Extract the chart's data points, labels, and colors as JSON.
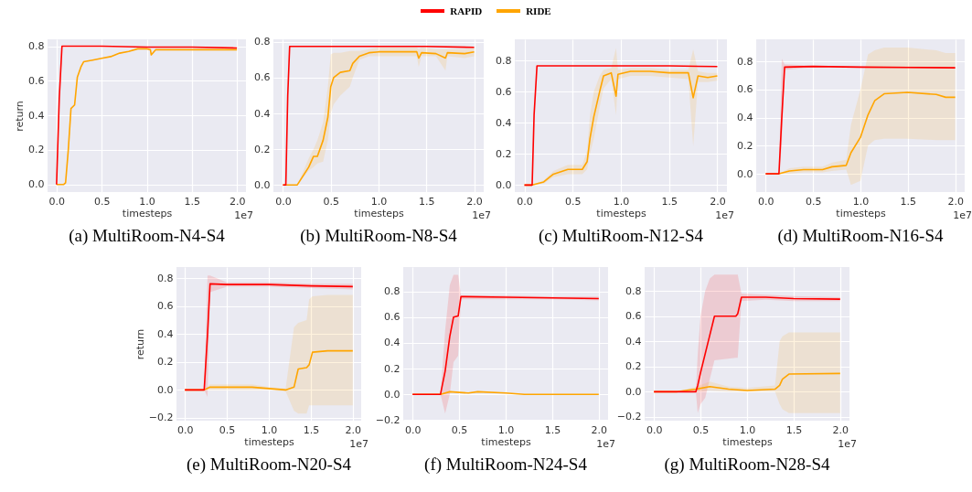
{
  "chart_data": [
    {
      "type": "line",
      "title": "(a) MultiRoom-N4-S4",
      "xlabel": "timesteps",
      "ylabel": "return",
      "annotations": [
        "1e7"
      ],
      "legend": "top",
      "grid": true,
      "xlim": [
        -0.1,
        2.1
      ],
      "ylim": [
        -0.044,
        0.84
      ],
      "xticks": [
        {
          "value": 0,
          "label": "0.0"
        },
        {
          "value": 0.5,
          "label": "0.5"
        },
        {
          "value": 1,
          "label": "1.0"
        },
        {
          "value": 1.5,
          "label": "1.5"
        },
        {
          "value": 2,
          "label": "2.0"
        }
      ],
      "yticks": [
        {
          "value": 0,
          "label": "0.0"
        },
        {
          "value": 0.2,
          "label": "0.2"
        },
        {
          "value": 0.4,
          "label": "0.4"
        },
        {
          "value": 0.6,
          "label": "0.6"
        },
        {
          "value": 0.8,
          "label": "0.8"
        }
      ],
      "series": [
        {
          "name": "RAPID",
          "color": "#ff0000",
          "x": [
            0,
            0.03,
            0.06,
            0.1,
            0.5,
            1,
            1.5,
            2
          ],
          "values": [
            0,
            0.5,
            0.8,
            0.8,
            0.8,
            0.795,
            0.795,
            0.79
          ]
        },
        {
          "name": "RIDE",
          "color": "#ffa500",
          "x": [
            0,
            0.08,
            0.1,
            0.13,
            0.16,
            0.2,
            0.23,
            0.27,
            0.3,
            0.4,
            0.5,
            0.6,
            0.7,
            0.8,
            0.9,
            1.0,
            1.04,
            1.05,
            1.1,
            1.5,
            2.0
          ],
          "values": [
            0,
            0,
            0.01,
            0.2,
            0.44,
            0.46,
            0.62,
            0.68,
            0.71,
            0.72,
            0.73,
            0.74,
            0.76,
            0.77,
            0.785,
            0.785,
            0.78,
            0.75,
            0.78,
            0.78,
            0.78
          ]
        }
      ]
    },
    {
      "type": "line",
      "title": "(b) MultiRoom-N8-S4",
      "xlabel": "timesteps",
      "annotations": [
        "1e7"
      ],
      "grid": true,
      "xlim": [
        -0.1,
        2.1
      ],
      "ylim": [
        -0.04,
        0.815
      ],
      "xticks": [
        {
          "value": 0,
          "label": "0.0"
        },
        {
          "value": 0.5,
          "label": "0.5"
        },
        {
          "value": 1,
          "label": "1.0"
        },
        {
          "value": 1.5,
          "label": "1.5"
        },
        {
          "value": 2,
          "label": "2.0"
        }
      ],
      "yticks": [
        {
          "value": 0,
          "label": "0.0"
        },
        {
          "value": 0.2,
          "label": "0.2"
        },
        {
          "value": 0.4,
          "label": "0.4"
        },
        {
          "value": 0.6,
          "label": "0.6"
        },
        {
          "value": 0.8,
          "label": "0.8"
        }
      ],
      "series": [
        {
          "color": "#ff0000",
          "x": [
            0,
            0.03,
            0.05,
            0.07,
            0.5,
            1,
            1.5,
            2
          ],
          "values": [
            0,
            0,
            0.5,
            0.775,
            0.775,
            0.775,
            0.775,
            0.77
          ]
        },
        {
          "color": "#ffa500",
          "x": [
            0,
            0.15,
            0.27,
            0.32,
            0.36,
            0.42,
            0.47,
            0.5,
            0.53,
            0.6,
            0.7,
            0.73,
            0.8,
            0.9,
            1.0,
            1.4,
            1.42,
            1.45,
            1.6,
            1.7,
            1.72,
            1.9,
            2.0
          ],
          "values": [
            0,
            0,
            0.1,
            0.16,
            0.16,
            0.25,
            0.38,
            0.55,
            0.6,
            0.63,
            0.64,
            0.68,
            0.72,
            0.74,
            0.745,
            0.745,
            0.71,
            0.74,
            0.735,
            0.71,
            0.74,
            0.735,
            0.745
          ],
          "lower": [
            0,
            0,
            0.08,
            0.1,
            0.12,
            0.13,
            0.25,
            0.4,
            0.45,
            0.5,
            0.55,
            0.6,
            0.7,
            0.72,
            0.72,
            0.72,
            0.66,
            0.72,
            0.72,
            0.64,
            0.72,
            0.71,
            0.72
          ],
          "upper": [
            0,
            0,
            0.15,
            0.2,
            0.25,
            0.35,
            0.55,
            0.73,
            0.74,
            0.74,
            0.75,
            0.75,
            0.75,
            0.76,
            0.77,
            0.77,
            0.76,
            0.77,
            0.76,
            0.76,
            0.76,
            0.76,
            0.77
          ]
        }
      ]
    },
    {
      "type": "line",
      "title": "(c) MultiRoom-N12-S4",
      "xlabel": "timesteps",
      "annotations": [
        "1e7"
      ],
      "grid": true,
      "xlim": [
        -0.1,
        2.1
      ],
      "ylim": [
        -0.045,
        0.935
      ],
      "xticks": [
        {
          "value": 0,
          "label": "0.0"
        },
        {
          "value": 0.5,
          "label": "0.5"
        },
        {
          "value": 1,
          "label": "1.0"
        },
        {
          "value": 1.5,
          "label": "1.5"
        },
        {
          "value": 2,
          "label": "2.0"
        }
      ],
      "yticks": [
        {
          "value": 0,
          "label": "0.0"
        },
        {
          "value": 0.2,
          "label": "0.2"
        },
        {
          "value": 0.4,
          "label": "0.4"
        },
        {
          "value": 0.6,
          "label": "0.6"
        },
        {
          "value": 0.8,
          "label": "0.8"
        }
      ],
      "series": [
        {
          "color": "#ff0000",
          "x": [
            0,
            0.08,
            0.1,
            0.13,
            0.5,
            1,
            1.5,
            2
          ],
          "values": [
            0,
            0,
            0.45,
            0.765,
            0.765,
            0.765,
            0.765,
            0.76
          ]
        },
        {
          "color": "#ffa500",
          "x": [
            0,
            0.08,
            0.2,
            0.3,
            0.45,
            0.6,
            0.65,
            0.68,
            0.72,
            0.78,
            0.82,
            0.9,
            0.95,
            0.97,
            1.1,
            1.3,
            1.5,
            1.7,
            1.75,
            1.8,
            1.9,
            2.0
          ],
          "values": [
            0,
            0,
            0.02,
            0.07,
            0.1,
            0.1,
            0.15,
            0.3,
            0.44,
            0.6,
            0.7,
            0.72,
            0.57,
            0.71,
            0.73,
            0.73,
            0.72,
            0.72,
            0.56,
            0.7,
            0.69,
            0.7
          ],
          "lower": [
            0,
            0,
            0.01,
            0.05,
            0.07,
            0.07,
            0.1,
            0.2,
            0.3,
            0.5,
            0.62,
            0.68,
            0.45,
            0.68,
            0.7,
            0.7,
            0.69,
            0.68,
            0.25,
            0.66,
            0.66,
            0.67
          ],
          "upper": [
            0,
            0,
            0.03,
            0.09,
            0.13,
            0.13,
            0.22,
            0.45,
            0.6,
            0.7,
            0.74,
            0.75,
            0.88,
            0.74,
            0.75,
            0.75,
            0.74,
            0.74,
            0.87,
            0.73,
            0.72,
            0.72
          ]
        }
      ]
    },
    {
      "type": "line",
      "title": "(d) MultiRoom-N16-S4",
      "xlabel": "timesteps",
      "annotations": [
        "1e7"
      ],
      "grid": true,
      "xlim": [
        -0.1,
        2.1
      ],
      "ylim": [
        -0.13,
        0.958
      ],
      "xticks": [
        {
          "value": 0,
          "label": "0.0"
        },
        {
          "value": 0.5,
          "label": "0.5"
        },
        {
          "value": 1,
          "label": "1.0"
        },
        {
          "value": 1.5,
          "label": "1.5"
        },
        {
          "value": 2,
          "label": "2.0"
        }
      ],
      "yticks": [
        {
          "value": 0,
          "label": "0.0"
        },
        {
          "value": 0.2,
          "label": "0.2"
        },
        {
          "value": 0.4,
          "label": "0.4"
        },
        {
          "value": 0.6,
          "label": "0.6"
        },
        {
          "value": 0.8,
          "label": "0.8"
        }
      ],
      "series": [
        {
          "color": "#ff0000",
          "x": [
            0,
            0.14,
            0.17,
            0.2,
            0.5,
            1,
            1.5,
            2
          ],
          "values": [
            0,
            0,
            0.4,
            0.76,
            0.765,
            0.76,
            0.758,
            0.755
          ],
          "lower": [
            0,
            0,
            0.2,
            0.74,
            0.76,
            0.755,
            0.75,
            0.75
          ],
          "upper": [
            0,
            0,
            0.82,
            0.78,
            0.77,
            0.765,
            0.765,
            0.76
          ]
        },
        {
          "color": "#ffa500",
          "x": [
            0,
            0.14,
            0.25,
            0.4,
            0.6,
            0.7,
            0.85,
            0.9,
            1.0,
            1.08,
            1.15,
            1.25,
            1.5,
            1.8,
            1.9,
            2.0
          ],
          "values": [
            0,
            0,
            0.02,
            0.03,
            0.03,
            0.05,
            0.06,
            0.15,
            0.26,
            0.42,
            0.52,
            0.57,
            0.58,
            0.565,
            0.545,
            0.545
          ],
          "lower": [
            0,
            0,
            0.0,
            0.01,
            0.01,
            0.02,
            0.03,
            -0.08,
            -0.05,
            0.2,
            0.24,
            0.25,
            0.25,
            0.24,
            0.24,
            0.24
          ],
          "upper": [
            0,
            0,
            0.04,
            0.05,
            0.05,
            0.08,
            0.1,
            0.35,
            0.6,
            0.85,
            0.88,
            0.9,
            0.9,
            0.88,
            0.86,
            0.86
          ]
        }
      ]
    },
    {
      "type": "line",
      "title": "(e) MultiRoom-N20-S4",
      "xlabel": "timesteps",
      "ylabel": "return",
      "annotations": [
        "1e7"
      ],
      "grid": true,
      "xlim": [
        -0.1,
        2.1
      ],
      "ylim": [
        -0.22,
        0.88
      ],
      "xticks": [
        {
          "value": 0,
          "label": "0.0"
        },
        {
          "value": 0.5,
          "label": "0.5"
        },
        {
          "value": 1,
          "label": "1.0"
        },
        {
          "value": 1.5,
          "label": "1.5"
        },
        {
          "value": 2,
          "label": "2.0"
        }
      ],
      "yticks": [
        {
          "value": -0.2,
          "label": "−0.2"
        },
        {
          "value": 0,
          "label": "0.0"
        },
        {
          "value": 0.2,
          "label": "0.2"
        },
        {
          "value": 0.4,
          "label": "0.4"
        },
        {
          "value": 0.6,
          "label": "0.6"
        },
        {
          "value": 0.8,
          "label": "0.8"
        }
      ],
      "series": [
        {
          "color": "#ff0000",
          "x": [
            0,
            0.23,
            0.27,
            0.3,
            0.5,
            1,
            1.5,
            2
          ],
          "values": [
            0,
            0,
            0.4,
            0.76,
            0.755,
            0.755,
            0.745,
            0.74
          ],
          "lower": [
            0,
            0,
            -0.05,
            0.7,
            0.74,
            0.74,
            0.73,
            0.72
          ],
          "upper": [
            0,
            0,
            0.82,
            0.82,
            0.77,
            0.77,
            0.76,
            0.76
          ]
        },
        {
          "color": "#ffa500",
          "x": [
            0,
            0.23,
            0.3,
            0.5,
            0.8,
            1.0,
            1.2,
            1.3,
            1.35,
            1.45,
            1.48,
            1.52,
            1.7,
            2.0
          ],
          "values": [
            0,
            0,
            0.02,
            0.02,
            0.02,
            0.01,
            0.0,
            0.02,
            0.15,
            0.16,
            0.18,
            0.27,
            0.28,
            0.28
          ],
          "lower": [
            0,
            0,
            0.0,
            0.0,
            0.0,
            0.0,
            -0.01,
            -0.15,
            -0.17,
            -0.17,
            -0.11,
            -0.11,
            -0.11,
            -0.11
          ],
          "upper": [
            0,
            0,
            0.04,
            0.04,
            0.04,
            0.02,
            0.01,
            0.45,
            0.48,
            0.5,
            0.65,
            0.67,
            0.68,
            0.68
          ]
        }
      ]
    },
    {
      "type": "line",
      "title": "(f) MultiRoom-N24-S4",
      "xlabel": "timesteps",
      "annotations": [
        "1e7"
      ],
      "grid": true,
      "xlim": [
        -0.1,
        2.1
      ],
      "ylim": [
        -0.205,
        0.99
      ],
      "xticks": [
        {
          "value": 0,
          "label": "0.0"
        },
        {
          "value": 0.5,
          "label": "0.5"
        },
        {
          "value": 1,
          "label": "1.0"
        },
        {
          "value": 1.5,
          "label": "1.5"
        },
        {
          "value": 2,
          "label": "2.0"
        }
      ],
      "yticks": [
        {
          "value": -0.2,
          "label": "−0.2"
        },
        {
          "value": 0,
          "label": "0.0"
        },
        {
          "value": 0.2,
          "label": "0.2"
        },
        {
          "value": 0.4,
          "label": "0.4"
        },
        {
          "value": 0.6,
          "label": "0.6"
        },
        {
          "value": 0.8,
          "label": "0.8"
        }
      ],
      "series": [
        {
          "color": "#ff0000",
          "x": [
            0,
            0.3,
            0.35,
            0.4,
            0.44,
            0.49,
            0.52,
            1,
            1.5,
            2
          ],
          "values": [
            0,
            0,
            0.18,
            0.45,
            0.6,
            0.61,
            0.76,
            0.755,
            0.75,
            0.745
          ],
          "lower": [
            0,
            0,
            -0.15,
            0.0,
            0.25,
            0.3,
            0.74,
            0.74,
            0.74,
            0.73
          ],
          "upper": [
            0,
            0,
            0.5,
            0.85,
            0.93,
            0.93,
            0.77,
            0.77,
            0.76,
            0.76
          ]
        },
        {
          "color": "#ffa500",
          "x": [
            0,
            0.3,
            0.4,
            0.6,
            0.7,
            1.0,
            1.2,
            2.0
          ],
          "values": [
            0,
            0,
            0.02,
            0.01,
            0.02,
            0.01,
            0.0,
            0.0
          ]
        }
      ]
    },
    {
      "type": "line",
      "title": "(g) MultiRoom-N28-S4",
      "xlabel": "timesteps",
      "annotations": [
        "1e7"
      ],
      "grid": true,
      "xlim": [
        -0.1,
        2.1
      ],
      "ylim": [
        -0.23,
        0.99
      ],
      "xticks": [
        {
          "value": 0,
          "label": "0.0"
        },
        {
          "value": 0.5,
          "label": "0.5"
        },
        {
          "value": 1,
          "label": "1.0"
        },
        {
          "value": 1.5,
          "label": "1.5"
        },
        {
          "value": 2,
          "label": "2.0"
        }
      ],
      "yticks": [
        {
          "value": -0.2,
          "label": "−0.2"
        },
        {
          "value": 0,
          "label": "0.0"
        },
        {
          "value": 0.2,
          "label": "0.2"
        },
        {
          "value": 0.4,
          "label": "0.4"
        },
        {
          "value": 0.6,
          "label": "0.6"
        },
        {
          "value": 0.8,
          "label": "0.8"
        }
      ],
      "series": [
        {
          "color": "#ff0000",
          "x": [
            0,
            0.45,
            0.47,
            0.5,
            0.55,
            0.6,
            0.65,
            0.88,
            0.9,
            0.94,
            1.2,
            1.5,
            2.0
          ],
          "values": [
            0,
            0,
            0.05,
            0.15,
            0.3,
            0.45,
            0.6,
            0.6,
            0.62,
            0.75,
            0.75,
            0.74,
            0.735
          ],
          "lower": [
            0,
            0,
            -0.17,
            -0.1,
            -0.05,
            0.1,
            0.25,
            0.27,
            0.27,
            0.72,
            0.73,
            0.72,
            0.72
          ],
          "upper": [
            0,
            0,
            0.3,
            0.6,
            0.8,
            0.9,
            0.93,
            0.93,
            0.93,
            0.78,
            0.77,
            0.76,
            0.75
          ]
        },
        {
          "color": "#ffa500",
          "x": [
            0,
            0.25,
            0.45,
            0.6,
            0.8,
            1.0,
            1.3,
            1.35,
            1.38,
            1.45,
            2.0
          ],
          "values": [
            0,
            0,
            0.02,
            0.04,
            0.02,
            0.01,
            0.02,
            0.05,
            0.1,
            0.14,
            0.145
          ],
          "lower": [
            0,
            0,
            0.0,
            0.01,
            0.0,
            0.0,
            0.0,
            -0.1,
            -0.14,
            -0.17,
            -0.17
          ],
          "upper": [
            0,
            0,
            0.04,
            0.08,
            0.04,
            0.03,
            0.05,
            0.4,
            0.44,
            0.47,
            0.47
          ]
        }
      ]
    }
  ]
}
